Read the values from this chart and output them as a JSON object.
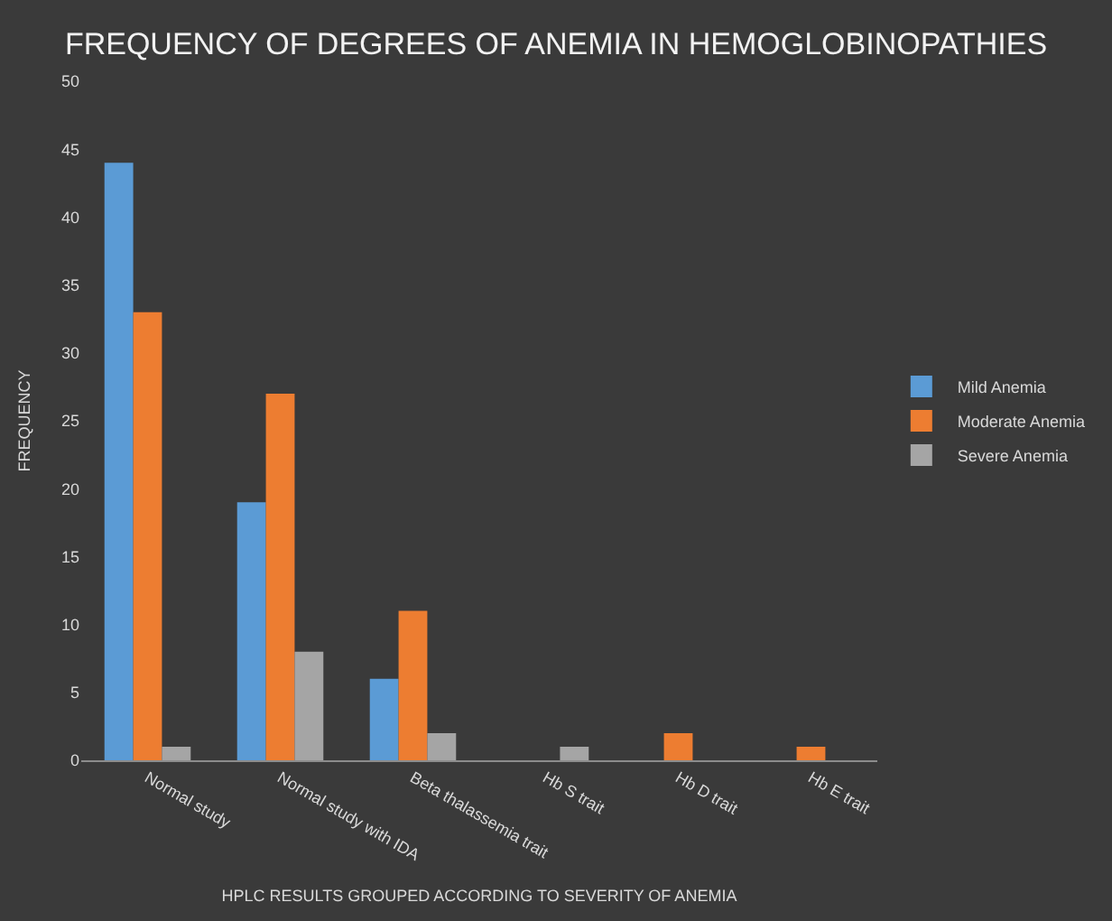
{
  "chart_data": {
    "type": "bar",
    "title": "FREQUENCY OF DEGREES OF ANEMIA IN HEMOGLOBINOPATHIES",
    "xlabel": "HPLC RESULTS GROUPED ACCORDING TO SEVERITY OF ANEMIA",
    "ylabel": "FREQUENCY",
    "categories": [
      "Normal study",
      "Normal study with IDA",
      "Beta thalassemia trait",
      "Hb S trait",
      "Hb D trait",
      "Hb E trait"
    ],
    "series": [
      {
        "name": "Mild Anemia",
        "color": "#5b9bd5",
        "values": [
          44,
          19,
          6,
          0,
          0,
          0
        ]
      },
      {
        "name": "Moderate Anemia",
        "color": "#ed7d31",
        "values": [
          33,
          27,
          11,
          0,
          2,
          1
        ]
      },
      {
        "name": "Severe Anemia",
        "color": "#a5a5a5",
        "values": [
          1,
          8,
          2,
          1,
          0,
          0
        ]
      }
    ],
    "ylim": [
      0,
      50
    ],
    "yticks": [
      0,
      5,
      10,
      15,
      20,
      25,
      30,
      35,
      40,
      45,
      50
    ],
    "grid": false,
    "legend": "right"
  }
}
